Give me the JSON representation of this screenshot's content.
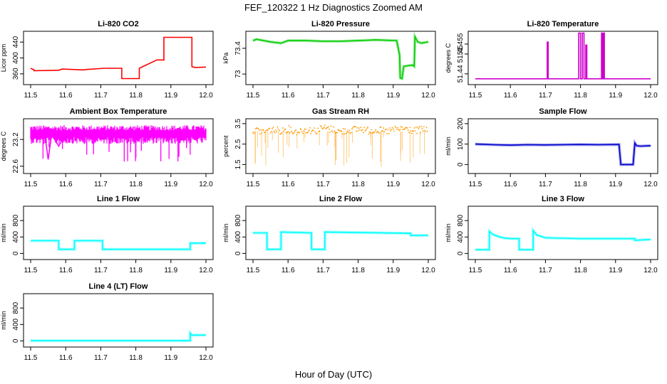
{
  "figure": {
    "title": "FEF_120322  1 Hz Diagnostics Zoomed AM",
    "xlabel": "Hour of Day (UTC)"
  },
  "chart_data": [
    {
      "type": "line",
      "title": "Li-820 CO2",
      "ylabel": "Licor ppm",
      "color": "#ff0000",
      "xlim": [
        11.5,
        12.0
      ],
      "ylim": [
        340,
        460
      ],
      "xticks": [
        "11.5",
        "11.6",
        "11.7",
        "11.8",
        "11.9",
        "12.0"
      ],
      "yticks": [
        360,
        400,
        440
      ],
      "x": [
        11.5,
        11.51,
        11.51,
        11.58,
        11.59,
        11.65,
        11.66,
        11.71,
        11.76,
        11.76,
        11.76,
        11.81,
        11.81,
        11.81,
        11.86,
        11.86,
        11.88,
        11.88,
        11.96,
        11.96,
        11.97,
        12.0
      ],
      "y": [
        374,
        370,
        368,
        369,
        372,
        370,
        371,
        374,
        374,
        362,
        348,
        348,
        374,
        374,
        395,
        395,
        395,
        452,
        452,
        378,
        376,
        377
      ]
    },
    {
      "type": "line",
      "title": "Li-820 Pressure",
      "ylabel": "kPa",
      "color": "#00cc00",
      "xlim": [
        11.5,
        12.0
      ],
      "ylim": [
        72.88,
        73.62
      ],
      "xticks": [
        "11.5",
        "11.6",
        "11.7",
        "11.8",
        "11.9",
        "12.0"
      ],
      "yticks": [
        73.0,
        73.4
      ],
      "x": [
        11.5,
        11.51,
        11.55,
        11.58,
        11.6,
        11.65,
        11.7,
        11.75,
        11.8,
        11.85,
        11.91,
        11.918,
        11.92,
        11.925,
        11.93,
        11.955,
        11.96,
        11.962,
        11.97,
        11.98,
        12.0
      ],
      "y": [
        73.52,
        73.54,
        73.5,
        73.48,
        73.52,
        73.52,
        73.51,
        73.51,
        73.52,
        73.53,
        73.52,
        73.3,
        72.94,
        72.93,
        73.12,
        73.14,
        73.12,
        73.58,
        73.5,
        73.48,
        73.5
      ]
    },
    {
      "type": "line",
      "title": "Li-820 Temperature",
      "ylabel": "degrees C",
      "color": "#cc00cc",
      "xlim": [
        11.5,
        12.0
      ],
      "ylim": [
        51.436,
        51.46
      ],
      "xticks": [
        "11.5",
        "11.6",
        "11.7",
        "11.8",
        "11.9",
        "12.0"
      ],
      "yticks": [
        51.44,
        51.45,
        51.455
      ],
      "x": [
        11.5,
        11.705,
        11.705,
        11.708,
        11.708,
        11.795,
        11.795,
        11.8,
        11.8,
        11.805,
        11.805,
        11.81,
        11.81,
        11.815,
        11.815,
        11.818,
        11.818,
        11.86,
        11.86,
        11.862,
        11.862,
        11.865,
        11.865,
        11.868,
        11.868,
        12.0
      ],
      "y": [
        51.4375,
        51.4375,
        51.456,
        51.456,
        51.4375,
        51.4375,
        51.4605,
        51.4605,
        51.4375,
        51.4375,
        51.4605,
        51.4605,
        51.4375,
        51.4375,
        51.4545,
        51.4545,
        51.4375,
        51.4375,
        51.4605,
        51.4605,
        51.4375,
        51.4375,
        51.4605,
        51.4605,
        51.4375,
        51.4375
      ]
    },
    {
      "type": "line",
      "title": "Ambient Box Temperature",
      "ylabel": "degrees C",
      "color": "#ff00ff",
      "xlim": [
        11.5,
        12.0
      ],
      "ylim": [
        22.5,
        23.6
      ],
      "xticks": [
        "11.5",
        "11.6",
        "11.7",
        "11.8",
        "11.9",
        "12.0"
      ],
      "yticks": [
        22.6,
        23.2
      ],
      "x": [
        11.5,
        11.52,
        11.54,
        11.55,
        11.56,
        11.58,
        11.6,
        11.62,
        11.64,
        11.66,
        11.68,
        11.7,
        11.72,
        11.74,
        11.76,
        11.78,
        11.8,
        11.82,
        11.84,
        11.86,
        11.88,
        11.9,
        11.92,
        11.94,
        11.96,
        11.98,
        12.0
      ],
      "y": [
        23.33,
        23.3,
        23.34,
        22.75,
        23.32,
        23.05,
        23.33,
        23.31,
        23.35,
        23.29,
        23.33,
        23.2,
        23.34,
        23.3,
        23.33,
        23.31,
        23.36,
        23.28,
        23.34,
        23.32,
        23.35,
        23.3,
        23.34,
        23.28,
        23.36,
        23.3,
        23.33
      ]
    },
    {
      "type": "scatter",
      "title": "Gas Stream RH",
      "ylabel": "percent",
      "color": "#ff9900",
      "xlim": [
        11.5,
        12.0
      ],
      "ylim": [
        1.2,
        3.6
      ],
      "xticks": [
        "11.5",
        "11.6",
        "11.7",
        "11.8",
        "11.9",
        "12.0"
      ],
      "yticks": [
        1.5,
        2.5,
        3.5
      ],
      "x": [
        11.5,
        11.53,
        11.55,
        11.58,
        11.6,
        11.62,
        11.65,
        11.68,
        11.7,
        11.73,
        11.75,
        11.78,
        11.81,
        11.83,
        11.85,
        11.88,
        11.9,
        11.93,
        11.96,
        11.98,
        12.0
      ],
      "y": [
        3.2,
        3.1,
        3.2,
        3.15,
        3.25,
        3.1,
        3.2,
        3.15,
        3.3,
        3.2,
        3.1,
        3.2,
        3.25,
        3.15,
        3.2,
        3.1,
        3.2,
        3.25,
        3.15,
        3.2,
        3.2
      ]
    },
    {
      "type": "line",
      "title": "Sample Flow",
      "ylabel": "ml/min",
      "color": "#0000cc",
      "xlim": [
        11.5,
        12.0
      ],
      "ylim": [
        -30,
        210
      ],
      "xticks": [
        "11.5",
        "11.6",
        "11.7",
        "11.8",
        "11.9",
        "12.0"
      ],
      "yticks": [
        0,
        100,
        200
      ],
      "x": [
        11.5,
        11.55,
        11.6,
        11.65,
        11.7,
        11.75,
        11.8,
        11.85,
        11.91,
        11.915,
        11.95,
        11.955,
        11.96,
        11.97,
        12.0
      ],
      "y": [
        100,
        97,
        95,
        97,
        96,
        97,
        98,
        97,
        98,
        0,
        0,
        105,
        92,
        90,
        92
      ]
    },
    {
      "type": "line",
      "title": "Line 1 Flow",
      "ylabel": "ml/min",
      "color": "#00ffff",
      "xlim": [
        11.5,
        12.0
      ],
      "ylim": [
        -80,
        1080
      ],
      "xticks": [
        "11.5",
        "11.6",
        "11.7",
        "11.8",
        "11.9",
        "12.0"
      ],
      "yticks": [
        0,
        400,
        800
      ],
      "x": [
        11.5,
        11.58,
        11.58,
        11.625,
        11.625,
        11.705,
        11.705,
        11.955,
        11.955,
        12.0
      ],
      "y": [
        310,
        310,
        100,
        100,
        310,
        310,
        100,
        100,
        250,
        250
      ]
    },
    {
      "type": "line",
      "title": "Line 2 Flow",
      "ylabel": "ml/min",
      "color": "#00ffff",
      "xlim": [
        11.5,
        12.0
      ],
      "ylim": [
        -80,
        1080
      ],
      "xticks": [
        "11.5",
        "11.6",
        "11.7",
        "11.8",
        "11.9",
        "12.0"
      ],
      "yticks": [
        0,
        400,
        800
      ],
      "x": [
        11.5,
        11.54,
        11.54,
        11.58,
        11.58,
        11.667,
        11.667,
        11.705,
        11.705,
        11.95,
        11.95,
        12.0
      ],
      "y": [
        500,
        500,
        100,
        100,
        520,
        500,
        100,
        100,
        520,
        490,
        440,
        440
      ]
    },
    {
      "type": "line",
      "title": "Line 3 Flow",
      "ylabel": "ml/min",
      "color": "#00ffff",
      "xlim": [
        11.5,
        12.0
      ],
      "ylim": [
        -80,
        1080
      ],
      "xticks": [
        "11.5",
        "11.6",
        "11.7",
        "11.8",
        "11.9",
        "12.0"
      ],
      "yticks": [
        0,
        400,
        800
      ],
      "x": [
        11.5,
        11.54,
        11.54,
        11.55,
        11.57,
        11.58,
        11.6,
        11.625,
        11.625,
        11.665,
        11.665,
        11.675,
        11.7,
        11.75,
        11.8,
        11.9,
        11.955,
        11.955,
        12.0
      ],
      "y": [
        90,
        90,
        540,
        460,
        400,
        380,
        360,
        360,
        90,
        90,
        560,
        450,
        380,
        370,
        360,
        360,
        360,
        320,
        340
      ]
    },
    {
      "type": "line",
      "title": "Line 4 (LT) Flow",
      "ylabel": "ml/min",
      "color": "#00ffff",
      "xlim": [
        11.5,
        12.0
      ],
      "ylim": [
        -80,
        1080
      ],
      "xticks": [
        "11.5",
        "11.6",
        "11.7",
        "11.8",
        "11.9",
        "12.0"
      ],
      "yticks": [
        0,
        400,
        800
      ],
      "x": [
        11.5,
        11.955,
        11.955,
        11.96,
        12.0
      ],
      "y": [
        5,
        5,
        190,
        140,
        140
      ]
    }
  ]
}
